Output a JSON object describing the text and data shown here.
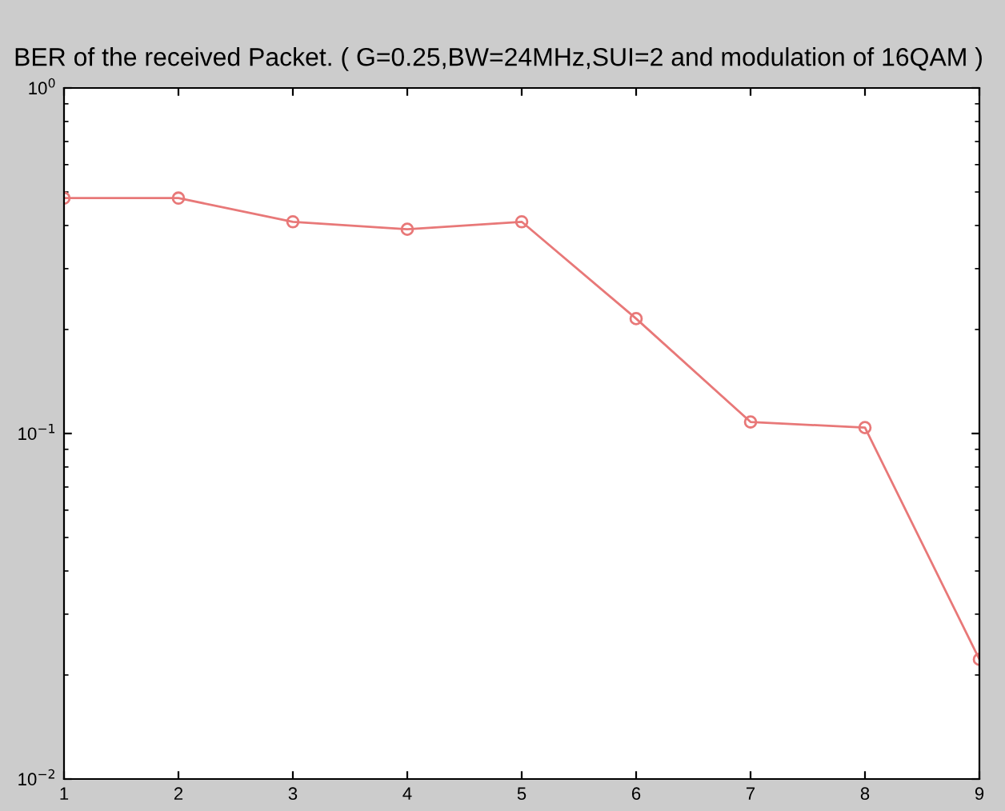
{
  "chart_data": {
    "type": "line",
    "title": "BER of the received Packet. ( G=0.25,BW=24MHz,SUI=2 and modulation of 16QAM )",
    "x": [
      1,
      2,
      3,
      4,
      5,
      6,
      7,
      8,
      9
    ],
    "series": [
      {
        "color": "#e87878",
        "values": [
          0.48,
          0.48,
          0.41,
          0.39,
          0.41,
          0.215,
          0.108,
          0.104,
          0.0222
        ]
      }
    ],
    "log": "y",
    "marker": "circle",
    "line_style": "solid",
    "grid": false,
    "xlim": [
      1,
      9
    ],
    "xticks": [
      1,
      2,
      3,
      4,
      5,
      6,
      7,
      8,
      9
    ],
    "ylim": [
      0.01,
      1
    ],
    "yticks": [
      {
        "value": 1,
        "label": "10$^{0}$"
      },
      {
        "value": 0.1,
        "label": "10$^{−1}$"
      },
      {
        "value": 0.01,
        "label": "10$^{−2}$"
      }
    ]
  }
}
